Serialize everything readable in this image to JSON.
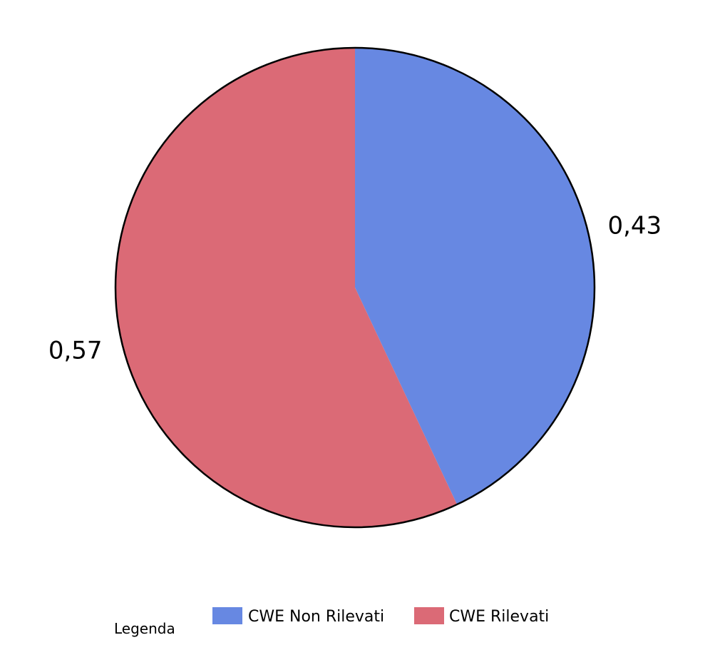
{
  "chart_data": {
    "type": "pie",
    "categories": [
      "CWE Non Rilevati",
      "CWE Rilevati"
    ],
    "values": [
      0.43,
      0.57
    ],
    "value_labels": [
      "0,43",
      "0,57"
    ],
    "colors": [
      "#6788e2",
      "#db6a76"
    ],
    "start_angle_deg": 0,
    "direction": "clockwise",
    "legend": {
      "title": "Legenda",
      "placement": "bottom",
      "entries": [
        "CWE Non Rilevati",
        "CWE Rilevati"
      ]
    }
  }
}
